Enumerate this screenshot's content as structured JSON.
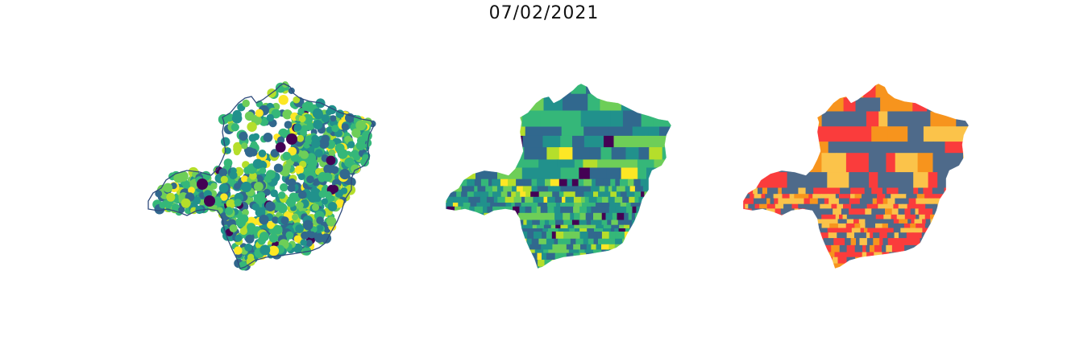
{
  "figure": {
    "title": "07/02/2021"
  },
  "panels": [
    {
      "id": "points",
      "kind": "scatter-points-over-outline",
      "palette": [
        "#440154",
        "#31688e",
        "#21918c",
        "#35b779",
        "#6ece58",
        "#b5de2b",
        "#fde725"
      ],
      "outline_color": "#2f4b7c"
    },
    {
      "id": "choropleth-viridis",
      "kind": "municipality-choropleth",
      "palette": [
        "#440154",
        "#31688e",
        "#21918c",
        "#35b779",
        "#6ece58",
        "#b5de2b",
        "#fde725"
      ]
    },
    {
      "id": "choropleth-categories",
      "kind": "municipality-choropleth",
      "palette": [
        "#fa3c3c",
        "#4e6a8a",
        "#fbc34a",
        "#f7941d"
      ]
    }
  ]
}
